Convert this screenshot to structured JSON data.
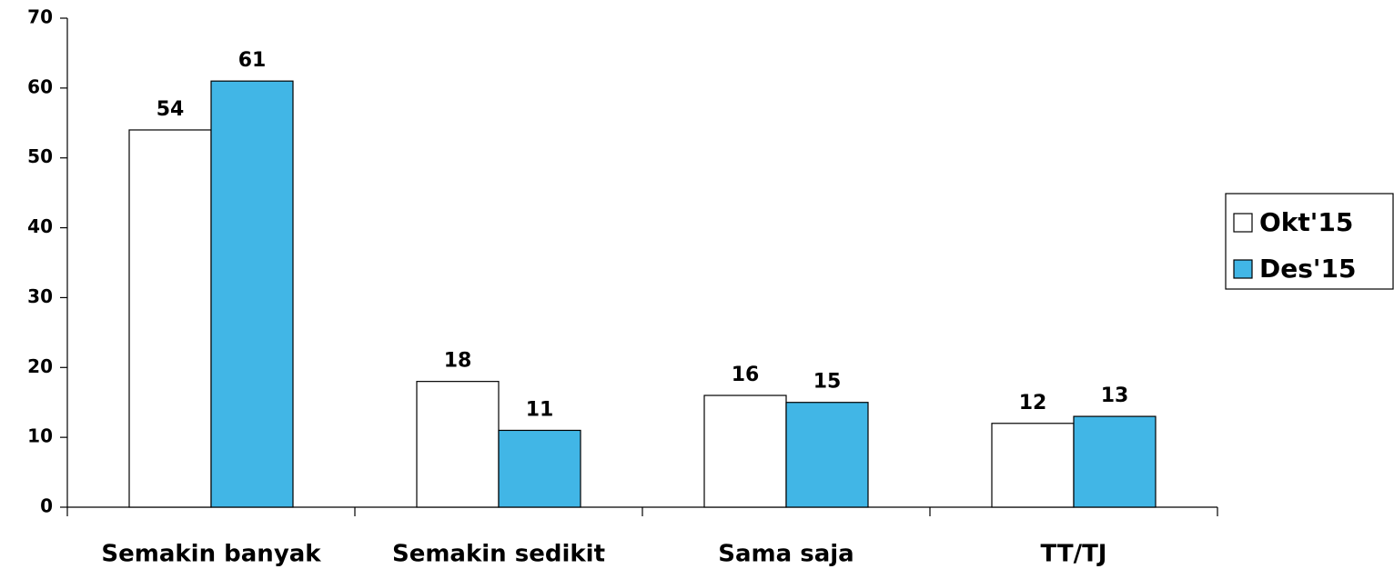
{
  "chart_data": {
    "type": "bar",
    "categories": [
      "Semakin banyak",
      "Semakin sedikit",
      "Sama saja",
      "TT/TJ"
    ],
    "series": [
      {
        "name": "Okt'15",
        "color": "#ffffff",
        "values": [
          54,
          18,
          16,
          12
        ]
      },
      {
        "name": "Des'15",
        "color": "#41b6e6",
        "values": [
          61,
          11,
          15,
          13
        ]
      }
    ],
    "ylim": [
      0,
      70
    ],
    "yticks": [
      0,
      10,
      20,
      30,
      40,
      50,
      60,
      70
    ],
    "grid": false,
    "legend": "right"
  }
}
